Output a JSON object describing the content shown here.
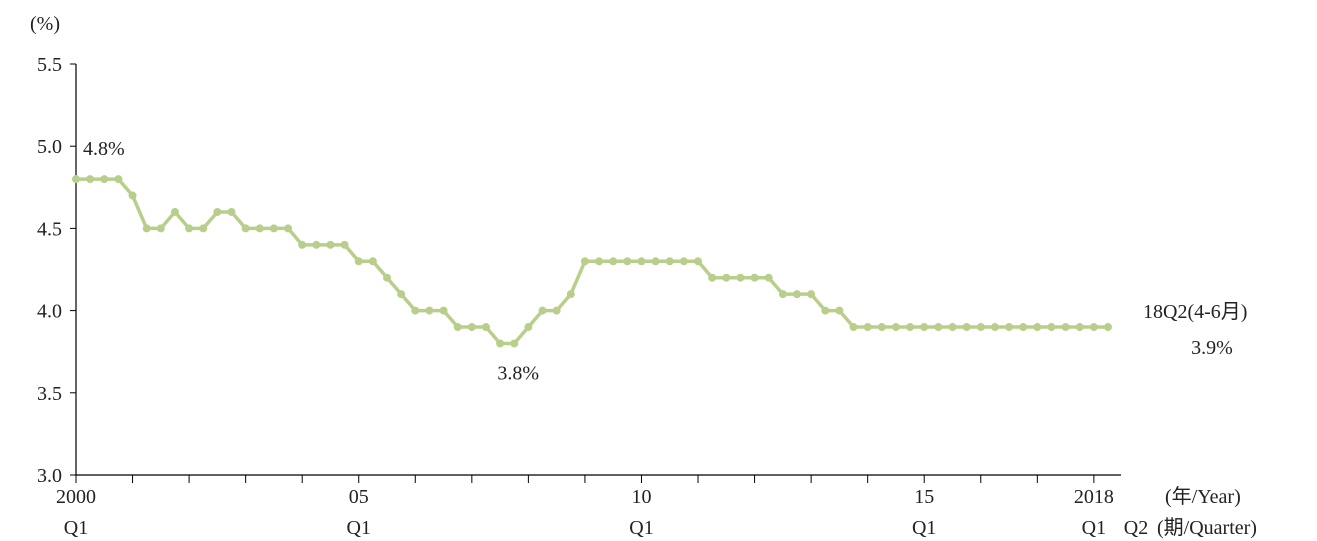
{
  "chart_data": {
    "type": "line",
    "ylabel": "(%)",
    "ylim": [
      3.0,
      5.5
    ],
    "yticks": [
      "3.0",
      "3.5",
      "4.0",
      "4.5",
      "5.0",
      "5.5"
    ],
    "x_start": {
      "year": 2000,
      "quarter": 1
    },
    "x_tick_labels": [
      {
        "year": "2000",
        "quarter": "Q1",
        "index": 0
      },
      {
        "year": "05",
        "quarter": "Q1",
        "index": 20
      },
      {
        "year": "10",
        "quarter": "Q1",
        "index": 40
      },
      {
        "year": "15",
        "quarter": "Q1",
        "index": 60
      },
      {
        "year": "2018",
        "quarter": "Q1",
        "index": 72
      }
    ],
    "x_last_quarter_label": "Q2",
    "x_unit_year": "(年/Year)",
    "x_unit_quarter": "(期/Quarter)",
    "series": [
      {
        "color": "#b8cf8c",
        "values": [
          4.8,
          4.8,
          4.8,
          4.8,
          4.7,
          4.5,
          4.5,
          4.6,
          4.5,
          4.5,
          4.6,
          4.6,
          4.5,
          4.5,
          4.5,
          4.5,
          4.4,
          4.4,
          4.4,
          4.4,
          4.3,
          4.3,
          4.2,
          4.1,
          4.0,
          4.0,
          4.0,
          3.9,
          3.9,
          3.9,
          3.8,
          3.8,
          3.9,
          4.0,
          4.0,
          4.1,
          4.3,
          4.3,
          4.3,
          4.3,
          4.3,
          4.3,
          4.3,
          4.3,
          4.3,
          4.2,
          4.2,
          4.2,
          4.2,
          4.2,
          4.1,
          4.1,
          4.1,
          4.0,
          4.0,
          3.9,
          3.9,
          3.9,
          3.9,
          3.9,
          3.9,
          3.9,
          3.9,
          3.9,
          3.9,
          3.9,
          3.9,
          3.9,
          3.9,
          3.9,
          3.9,
          3.9,
          3.9,
          3.9
        ]
      }
    ],
    "annotations": [
      {
        "text": "4.8%",
        "index": 0,
        "value": 4.8
      },
      {
        "text": "3.8%",
        "index": 31,
        "value": 3.8
      },
      {
        "text": "18Q2(4-6月)",
        "index": 73,
        "value": 3.9
      },
      {
        "text": "3.9%",
        "index": 73,
        "value": 3.9
      }
    ]
  }
}
